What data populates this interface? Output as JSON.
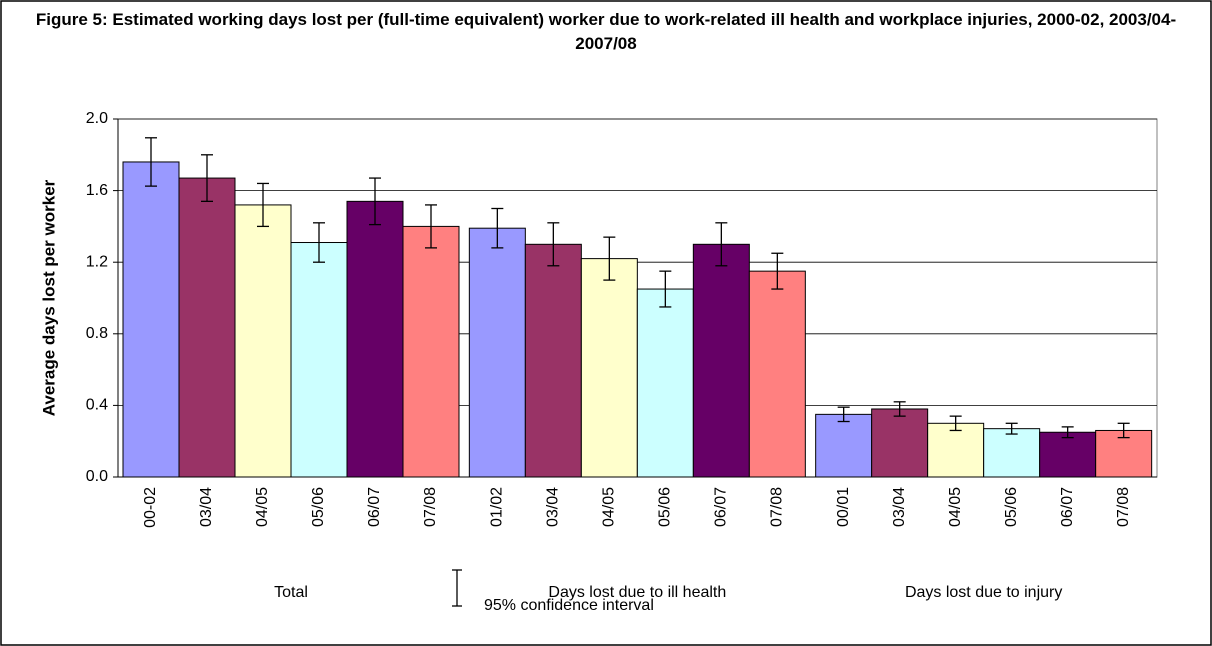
{
  "chart_data": {
    "type": "bar",
    "title": "Figure 5: Estimated working days lost per (full-time equivalent) worker due to work-related ill health and workplace injuries, 2000-02, 2003/04-2007/08",
    "ylabel": "Average days lost per worker",
    "ylim": [
      0,
      2
    ],
    "yticks": [
      {
        "value": 0,
        "label": "0.0"
      },
      0.4,
      0.8,
      1.2,
      1.6,
      {
        "value": 2,
        "label": "2.0"
      }
    ],
    "grid": true,
    "colors": [
      "#9999ff",
      "#993366",
      "#ffffcc",
      "#ccffff",
      "#660066",
      "#ff8080"
    ],
    "legend_label": "95% confidence interval",
    "groups": [
      {
        "name": "Total",
        "categories": [
          "00-02",
          "03/04",
          "04/05",
          "05/06",
          "06/07",
          "07/08"
        ],
        "values": [
          1.76,
          1.67,
          1.52,
          1.31,
          1.54,
          1.4
        ],
        "errors": [
          0.135,
          0.13,
          0.12,
          0.11,
          0.13,
          0.12
        ]
      },
      {
        "name": "Days lost due to ill health",
        "categories": [
          "01/02",
          "03/04",
          "04/05",
          "05/06",
          "06/07",
          "07/08"
        ],
        "values": [
          1.39,
          1.3,
          1.22,
          1.05,
          1.3,
          1.15
        ],
        "errors": [
          0.11,
          0.12,
          0.12,
          0.1,
          0.12,
          0.1
        ]
      },
      {
        "name": "Days lost due to injury",
        "categories": [
          "00/01",
          "03/04",
          "04/05",
          "05/06",
          "06/07",
          "07/08"
        ],
        "values": [
          0.35,
          0.38,
          0.3,
          0.27,
          0.25,
          0.26
        ],
        "errors": [
          0.04,
          0.04,
          0.04,
          0.03,
          0.03,
          0.04
        ]
      }
    ]
  }
}
